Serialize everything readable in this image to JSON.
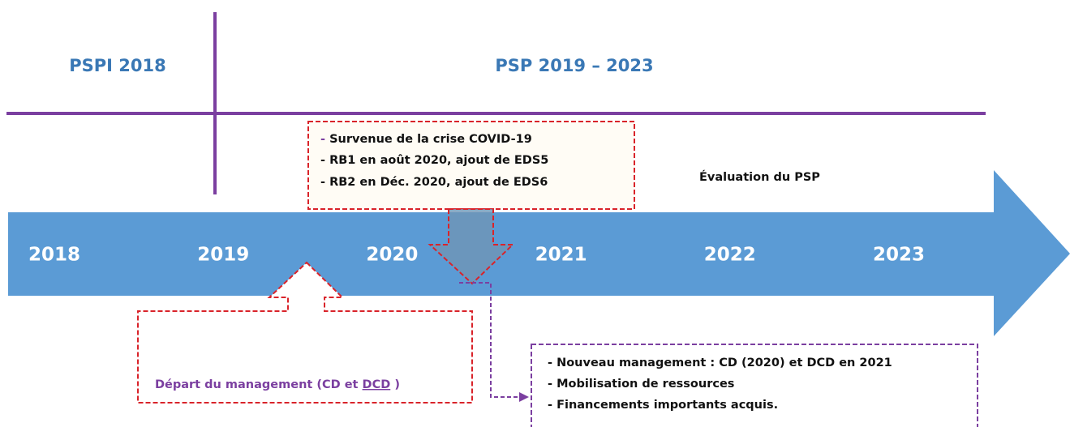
{
  "phases": [
    "PSPI 2018",
    "PSP 2019 – 2023"
  ],
  "timeline": {
    "years": [
      "2018",
      "2019",
      "2020",
      "2021",
      "2022",
      "2023"
    ]
  },
  "covid_box": {
    "lines": [
      "Survenue de la crise COVID-19",
      "RB1 en août 2020, ajout de EDS5",
      "RB2 en Déc. 2020, ajout de EDS6"
    ]
  },
  "evaluation": "Évaluation du PSP",
  "departure": {
    "text": "Départ du management (CD et ",
    "underlined": "DCD",
    "suffix": " )"
  },
  "new_management": {
    "lines": [
      "Nouveau management : CD (2020) et DCD en 2021",
      "Mobilisation de ressources",
      "Financements importants acquis."
    ]
  }
}
